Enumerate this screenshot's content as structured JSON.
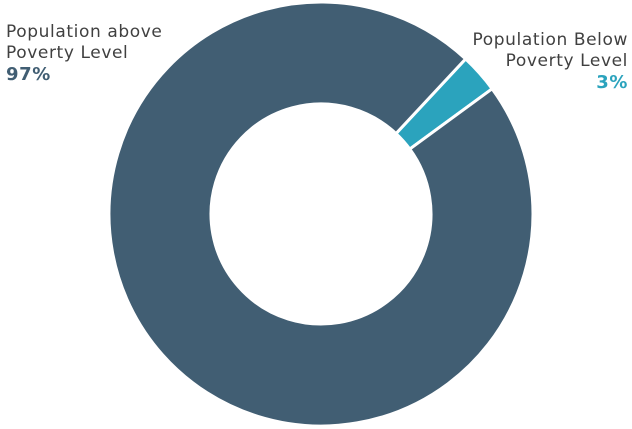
{
  "chart_data": {
    "type": "pie",
    "donut": true,
    "title": "",
    "slices": [
      {
        "label": "Population above Poverty Level",
        "label_line1": "Population above",
        "label_line2": "Poverty Level",
        "value": 97,
        "display": "97%",
        "color": "#415e73"
      },
      {
        "label": "Population Below Poverty Level",
        "label_line1": "Population Below",
        "label_line2": "Poverty Level",
        "value": 3,
        "display": "3%",
        "color": "#2ba3bd"
      }
    ],
    "legend": "none"
  }
}
